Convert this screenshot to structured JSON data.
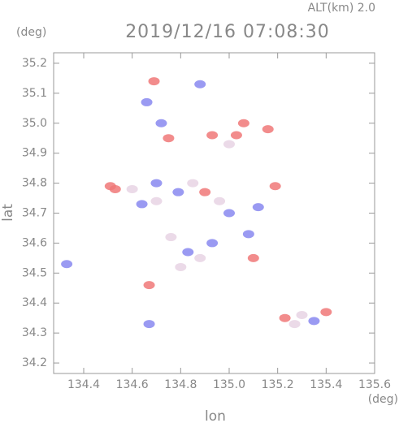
{
  "chart_data": {
    "type": "scatter",
    "title": "2019/12/16 07:08:30",
    "subtitle": "ALT(km) 2.0",
    "y_unit": "(deg)",
    "x_unit": "(deg)",
    "x_label": "lon",
    "y_label": "lat",
    "xlim": [
      134.276,
      135.6
    ],
    "ylim": [
      34.165,
      35.235
    ],
    "xticks": [
      134.4,
      134.6,
      134.8,
      {
        "value": 135.0,
        "label": "135.0"
      },
      135.2,
      135.4,
      135.6
    ],
    "yticks": [
      34.2,
      34.3,
      34.4,
      34.5,
      34.6,
      34.7,
      34.8,
      34.9,
      {
        "value": 35.0,
        "label": "35.0"
      },
      35.1,
      35.2
    ],
    "series": [
      {
        "color": "#f07878",
        "x": [
          134.69,
          135.06,
          134.93,
          135.16,
          134.51,
          135.19,
          134.67,
          135.23,
          135.4,
          134.9,
          135.1,
          134.75,
          135.03,
          134.53
        ],
        "values": [
          35.14,
          35.0,
          34.96,
          34.98,
          34.79,
          34.79,
          34.46,
          34.35,
          34.37,
          34.77,
          34.55,
          34.95,
          34.96,
          34.78
        ]
      },
      {
        "color": "#8888f0",
        "x": [
          134.66,
          134.88,
          134.79,
          134.83,
          135.35,
          134.72,
          134.64,
          135.0,
          134.93,
          135.08,
          134.33,
          134.67,
          135.12,
          134.7
        ],
        "values": [
          35.07,
          35.13,
          34.77,
          34.57,
          34.34,
          35.0,
          34.73,
          34.7,
          34.6,
          34.63,
          34.53,
          34.33,
          34.72,
          34.8
        ]
      },
      {
        "color": "#e8d4e4",
        "x": [
          134.6,
          134.7,
          134.85,
          134.96,
          135.27,
          134.8,
          135.0,
          134.88,
          135.3,
          134.76
        ],
        "values": [
          34.78,
          34.74,
          34.8,
          34.74,
          34.33,
          34.52,
          34.93,
          34.55,
          34.36,
          34.62
        ]
      }
    ]
  }
}
